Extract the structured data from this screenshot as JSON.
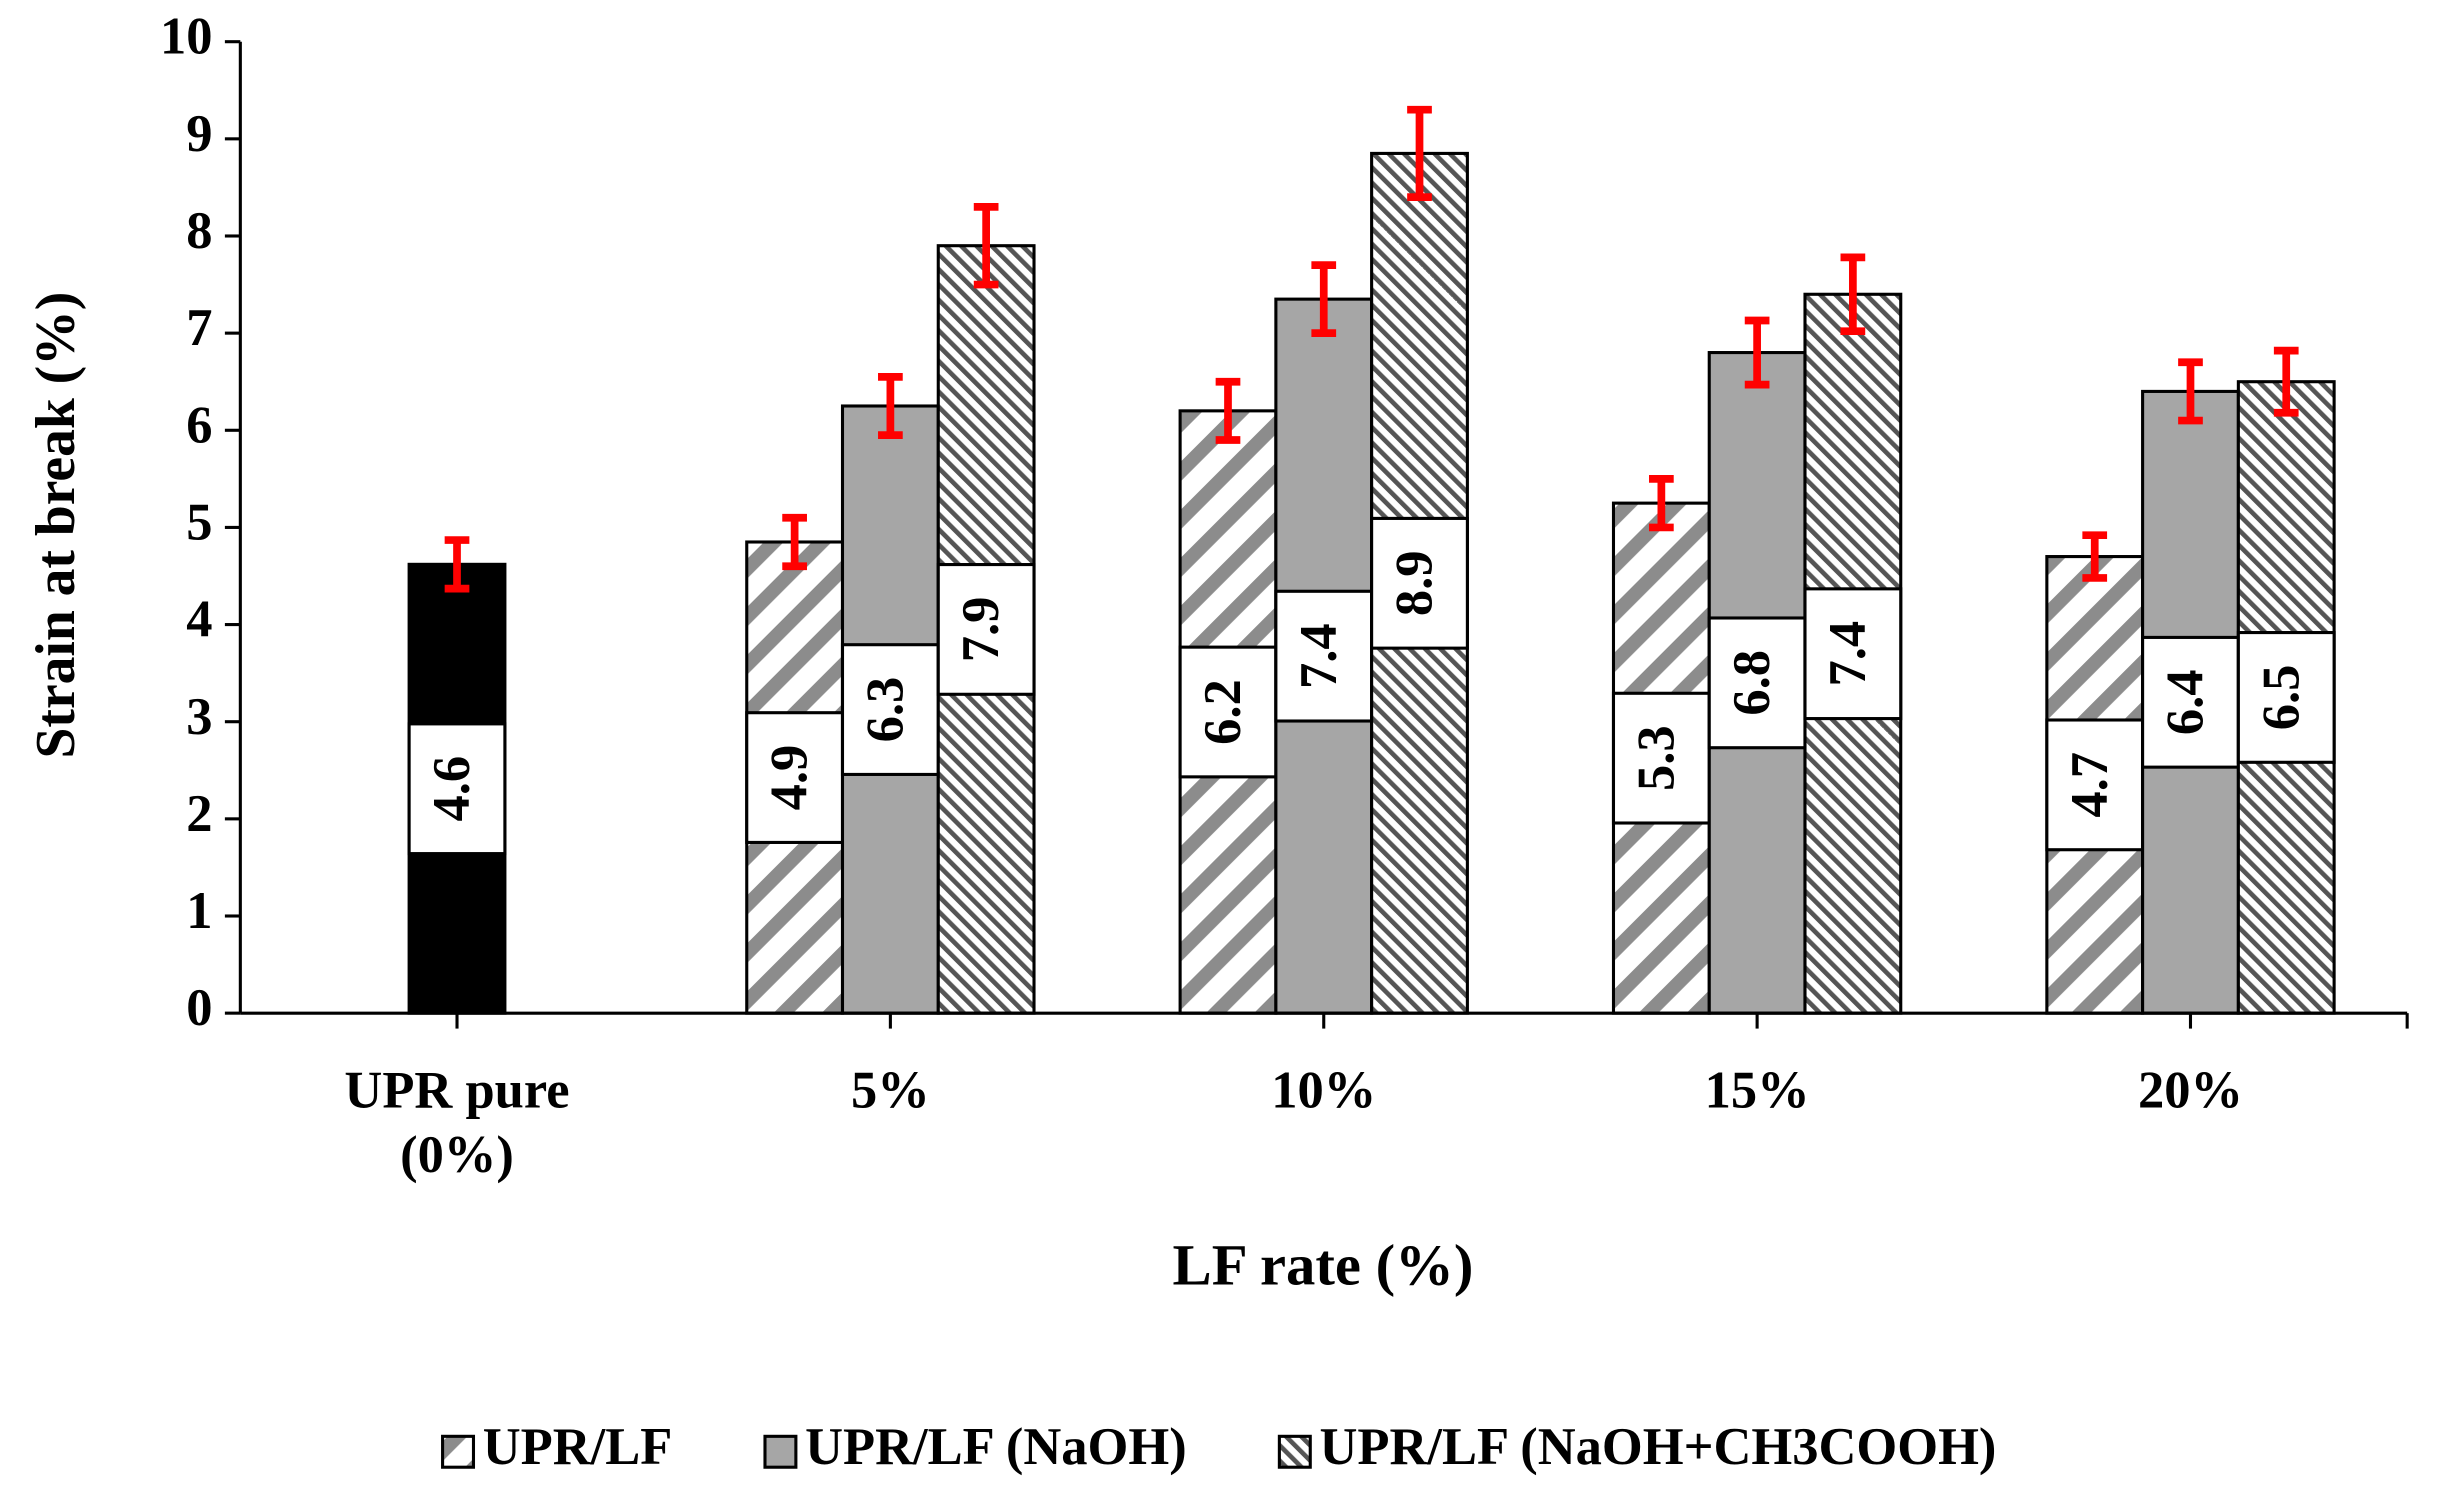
{
  "chart_data": {
    "type": "bar",
    "y_label": "Strain at break (%)",
    "x_label": "LF rate  (%)",
    "categories": [
      "UPR pure (0%)",
      "5%",
      "10%",
      "15%",
      "20%"
    ],
    "reference": {
      "value": 4.62,
      "value_label": "4.6",
      "error": 0.25,
      "color": "#000000"
    },
    "series": [
      {
        "name": "UPR/LF",
        "color": "#8c8c8c",
        "pattern": "wide-diagonal",
        "values": [
          null,
          4.85,
          6.2,
          5.25,
          4.7
        ],
        "value_labels": [
          null,
          "4.9",
          "6.2",
          "5.3",
          "4.7"
        ],
        "errors": [
          null,
          0.25,
          0.3,
          0.25,
          0.22
        ]
      },
      {
        "name": "UPR/LF (NaOH)",
        "color": "#a6a6a6",
        "pattern": "solid",
        "values": [
          null,
          6.25,
          7.35,
          6.8,
          6.4
        ],
        "value_labels": [
          null,
          "6.3",
          "7.4",
          "6.8",
          "6.4"
        ],
        "errors": [
          null,
          0.3,
          0.35,
          0.33,
          0.3
        ]
      },
      {
        "name": "UPR/LF (NaOH+CH3COOH)",
        "color": "#555555",
        "pattern": "fine-diagonal",
        "values": [
          null,
          7.9,
          8.85,
          7.4,
          6.5
        ],
        "value_labels": [
          null,
          "7.9",
          "8.9",
          "7.4",
          "6.5"
        ],
        "errors": [
          null,
          0.4,
          0.45,
          0.38,
          0.32
        ]
      }
    ],
    "error_color": "#ff0000",
    "ylim": [
      0,
      10
    ],
    "yticks": [
      0,
      1,
      2,
      3,
      4,
      5,
      6,
      7,
      8,
      9,
      10
    ],
    "grid": false,
    "legend": "bottom"
  }
}
